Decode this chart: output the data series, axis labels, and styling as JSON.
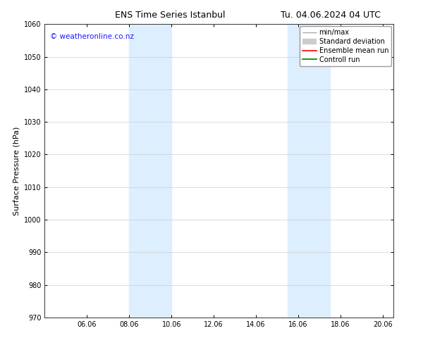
{
  "title_left": "ENS Time Series Istanbul",
  "title_right": "Tu. 04.06.2024 04 UTC",
  "ylabel": "Surface Pressure (hPa)",
  "ylim": [
    970,
    1060
  ],
  "yticks": [
    970,
    980,
    990,
    1000,
    1010,
    1020,
    1030,
    1040,
    1050,
    1060
  ],
  "xlim_start": 4.0,
  "xlim_end": 20.5,
  "xtick_labels": [
    "06.06",
    "08.06",
    "10.06",
    "12.06",
    "14.06",
    "16.06",
    "18.06",
    "20.06"
  ],
  "xtick_positions": [
    6.0,
    8.0,
    10.0,
    12.0,
    14.0,
    16.0,
    18.0,
    20.0
  ],
  "shaded_bands": [
    {
      "x_start": 8.0,
      "x_end": 10.0,
      "color": "#ddeeff"
    },
    {
      "x_start": 15.5,
      "x_end": 17.5,
      "color": "#ddeeff"
    }
  ],
  "watermark_text": "© weatheronline.co.nz",
  "watermark_color": "#1a1aff",
  "watermark_fontsize": 7.5,
  "background_color": "#ffffff",
  "grid_color": "#cccccc",
  "grid_alpha": 0.8,
  "title_fontsize": 9,
  "tick_fontsize": 7,
  "ylabel_fontsize": 8,
  "legend_fontsize": 7,
  "legend_line_colors": [
    "#aaaaaa",
    "#cccccc",
    "#ff0000",
    "#007700"
  ],
  "legend_labels": [
    "min/max",
    "Standard deviation",
    "Ensemble mean run",
    "Controll run"
  ]
}
